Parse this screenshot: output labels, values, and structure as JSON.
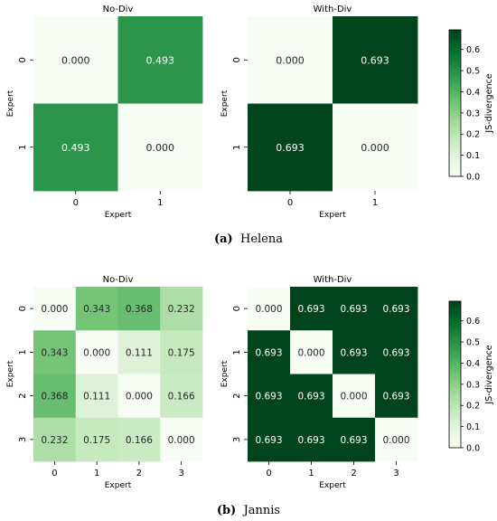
{
  "figure": {
    "captions": [
      {
        "label": "(a)",
        "text": "Helena"
      },
      {
        "label": "(b)",
        "text": "Jannis"
      }
    ]
  },
  "colorbar": {
    "label": "JS-divergence",
    "ticks": [
      "0.0",
      "0.1",
      "0.2",
      "0.3",
      "0.4",
      "0.5",
      "0.6"
    ],
    "colors": {
      "low": "#f7fcf5",
      "mid": "#74c476",
      "high": "#00441b"
    }
  },
  "chart_data": [
    {
      "type": "heatmap",
      "title": "No-Div",
      "xlabel": "Expert",
      "ylabel": "Expert",
      "categories": [
        "0",
        "1"
      ],
      "values": [
        [
          0.0,
          0.493
        ],
        [
          0.493,
          0.0
        ]
      ],
      "labels": [
        [
          "0.000",
          "0.493"
        ],
        [
          "0.493",
          "0.000"
        ]
      ],
      "vmin": 0,
      "vmax": 0.693
    },
    {
      "type": "heatmap",
      "title": "With-Div",
      "xlabel": "Expert",
      "ylabel": "Expert",
      "categories": [
        "0",
        "1"
      ],
      "values": [
        [
          0.0,
          0.693
        ],
        [
          0.693,
          0.0
        ]
      ],
      "labels": [
        [
          "0.000",
          "0.693"
        ],
        [
          "0.693",
          "0.000"
        ]
      ],
      "vmin": 0,
      "vmax": 0.693
    },
    {
      "type": "heatmap",
      "title": "No-Div",
      "xlabel": "Expert",
      "ylabel": "Expert",
      "categories": [
        "0",
        "1",
        "2",
        "3"
      ],
      "values": [
        [
          0.0,
          0.343,
          0.368,
          0.232
        ],
        [
          0.343,
          0.0,
          0.111,
          0.175
        ],
        [
          0.368,
          0.111,
          0.0,
          0.166
        ],
        [
          0.232,
          0.175,
          0.166,
          0.0
        ]
      ],
      "labels": [
        [
          "0.000",
          "0.343",
          "0.368",
          "0.232"
        ],
        [
          "0.343",
          "0.000",
          "0.111",
          "0.175"
        ],
        [
          "0.368",
          "0.111",
          "0.000",
          "0.166"
        ],
        [
          "0.232",
          "0.175",
          "0.166",
          "0.000"
        ]
      ],
      "vmin": 0,
      "vmax": 0.693
    },
    {
      "type": "heatmap",
      "title": "With-Div",
      "xlabel": "Expert",
      "ylabel": "Expert",
      "categories": [
        "0",
        "1",
        "2",
        "3"
      ],
      "values": [
        [
          0.0,
          0.693,
          0.693,
          0.693
        ],
        [
          0.693,
          0.0,
          0.693,
          0.693
        ],
        [
          0.693,
          0.693,
          0.0,
          0.693
        ],
        [
          0.693,
          0.693,
          0.693,
          0.0
        ]
      ],
      "labels": [
        [
          "0.000",
          "0.693",
          "0.693",
          "0.693"
        ],
        [
          "0.693",
          "0.000",
          "0.693",
          "0.693"
        ],
        [
          "0.693",
          "0.693",
          "0.000",
          "0.693"
        ],
        [
          "0.693",
          "0.693",
          "0.693",
          "0.000"
        ]
      ],
      "vmin": 0,
      "vmax": 0.693
    }
  ]
}
